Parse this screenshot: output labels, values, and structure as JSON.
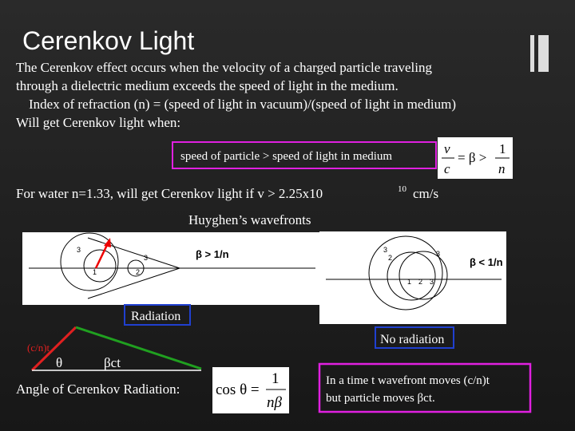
{
  "title": "Cerenkov Light",
  "body": {
    "lines": [
      "The Cerenkov effect occurs when the velocity of a charged particle traveling",
      "through a dielectric medium exceeds the speed of light in the medium.",
      "Index of refraction (n) = (speed of light in vacuum)/(speed of light in medium)",
      "Will get Cerenkov light when:"
    ]
  },
  "condition": {
    "text": "speed of particle > speed of light in medium",
    "formula": {
      "top_left": "v",
      "bottom_left": "c",
      "middle": "= β >",
      "top_right": "1",
      "bottom_right": "n"
    }
  },
  "water": {
    "text": "For water n=1.33, will get Cerenkov light if v > 2.25x10",
    "exponent": "10",
    "unit": "cm/s"
  },
  "wavefronts_label": "Huyghen’s wavefronts",
  "diagrams": [
    {
      "label": "β > 1/n",
      "numbers": [
        "3",
        "1",
        "2",
        "3"
      ]
    },
    {
      "label": "β < 1/n",
      "numbers": [
        "3",
        "2",
        "3",
        "1",
        "2",
        "3"
      ]
    }
  ],
  "radiation": "Radiation",
  "no_radiation": "No radiation",
  "triangle": {
    "side": "(c/n)t",
    "angle": "θ",
    "base": "βct"
  },
  "angle": {
    "text": "Angle of Cerenkov Radiation:",
    "lhs": "cos θ =",
    "numerator": "1",
    "denominator": "nβ"
  },
  "note": {
    "lines": [
      "In a time t wavefront moves (c/n)t",
      "but particle moves βct."
    ]
  }
}
